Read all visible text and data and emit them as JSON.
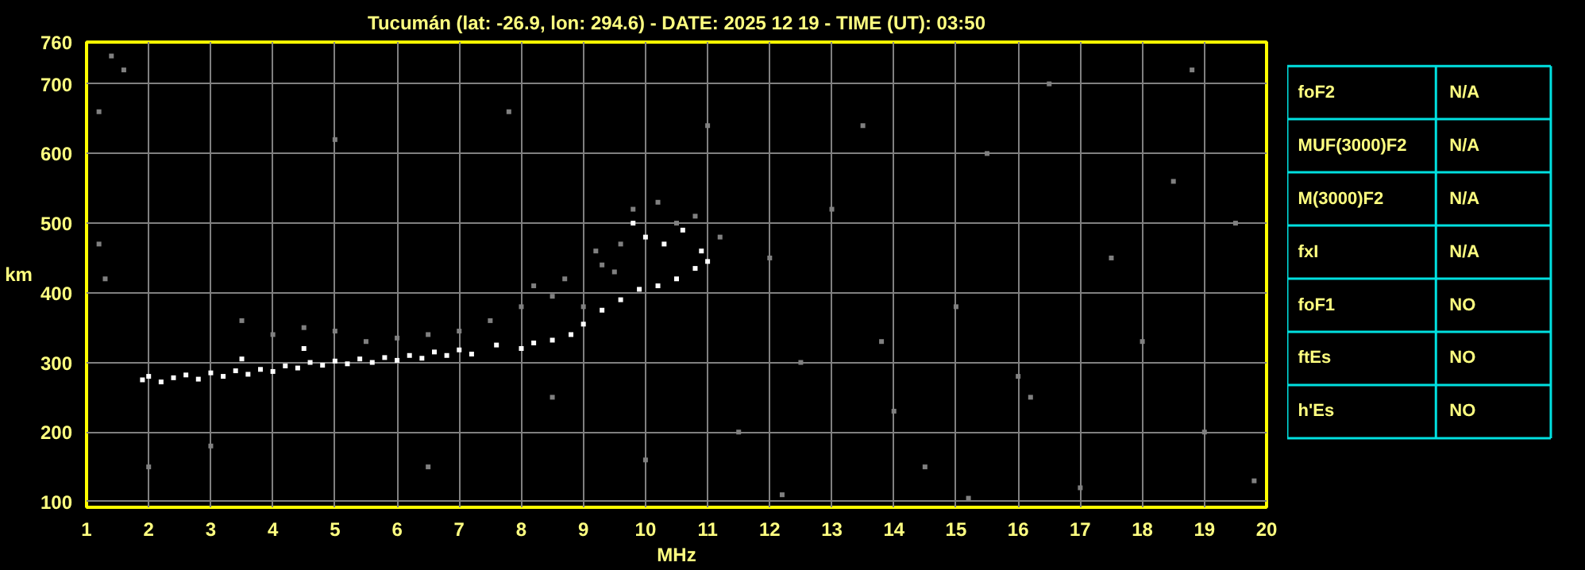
{
  "chart_data": [
    {
      "type": "scatter",
      "title": "Tucumán (lat: -26.9, lon: 294.6) - DATE: 2025 12 19 - TIME (UT): 03:50",
      "xlabel": "MHz",
      "ylabel": "km",
      "xlim": [
        1,
        20
      ],
      "ylim": [
        92,
        760
      ],
      "xticks": [
        1,
        2,
        3,
        4,
        5,
        6,
        7,
        8,
        9,
        10,
        11,
        12,
        13,
        14,
        15,
        16,
        17,
        18,
        19,
        20
      ],
      "yticks": [
        100,
        200,
        300,
        400,
        500,
        600,
        700,
        760
      ],
      "grid": true,
      "marker": "square",
      "series": [
        {
          "color": "#ffffff",
          "x": [
            1.9,
            2.0,
            2.2,
            2.4,
            2.6,
            2.8,
            3.0,
            3.2,
            3.4,
            3.6,
            3.8,
            4.0,
            4.2,
            4.4,
            4.6,
            4.8,
            5.0,
            5.2,
            5.4,
            5.6,
            5.8,
            6.0,
            6.2,
            6.4,
            6.6,
            6.8,
            7.0,
            7.2,
            7.6,
            8.0,
            8.2,
            8.5,
            8.8,
            9.0,
            9.3,
            9.6,
            9.9,
            10.2,
            10.5,
            10.8,
            11.0,
            10.0,
            10.3,
            10.6,
            10.9,
            9.8,
            4.5,
            3.5
          ],
          "values": [
            275,
            280,
            272,
            278,
            282,
            276,
            285,
            280,
            288,
            283,
            290,
            287,
            295,
            292,
            300,
            296,
            302,
            298,
            305,
            300,
            307,
            303,
            310,
            306,
            315,
            310,
            318,
            312,
            325,
            320,
            328,
            332,
            340,
            355,
            375,
            390,
            405,
            410,
            420,
            435,
            445,
            480,
            470,
            490,
            460,
            500,
            320,
            305
          ]
        },
        {
          "color": "#808080",
          "x": [
            3.5,
            4.0,
            4.5,
            5.0,
            5.5,
            6.0,
            6.5,
            7.0,
            7.5,
            8.0,
            8.2,
            8.5,
            8.7,
            9.0,
            9.3,
            9.6,
            9.8,
            10.2,
            10.5,
            10.8,
            11.2,
            9.2,
            9.5,
            1.3,
            1.2,
            1.4,
            1.6,
            1.2,
            2.0,
            3.0,
            5.0,
            7.8,
            12.0,
            12.5,
            13.0,
            13.5,
            14.0,
            14.5,
            15.0,
            15.5,
            16.0,
            16.5,
            17.0,
            17.5,
            18.0,
            18.5,
            19.0,
            19.5,
            19.8,
            11.5,
            12.2,
            15.2,
            16.2,
            18.8,
            13.8,
            6.5,
            8.5,
            10.0,
            11.0
          ],
          "values": [
            360,
            340,
            350,
            345,
            330,
            335,
            340,
            345,
            360,
            380,
            410,
            395,
            420,
            380,
            440,
            470,
            520,
            530,
            500,
            510,
            480,
            460,
            430,
            420,
            470,
            740,
            720,
            660,
            150,
            180,
            620,
            660,
            450,
            300,
            520,
            640,
            230,
            150,
            380,
            600,
            280,
            700,
            120,
            450,
            330,
            560,
            200,
            500,
            130,
            200,
            110,
            105,
            250,
            720,
            330,
            150,
            250,
            160,
            640
          ]
        }
      ]
    },
    {
      "type": "other",
      "categories": [
        "foF2",
        "MUF(3000)F2",
        "M(3000)F2",
        "fxI",
        "foF1",
        "ftEs",
        "h'Es"
      ],
      "annotations": [
        "N/A",
        "N/A",
        "N/A",
        "N/A",
        "NO",
        "NO",
        "NO"
      ]
    }
  ]
}
